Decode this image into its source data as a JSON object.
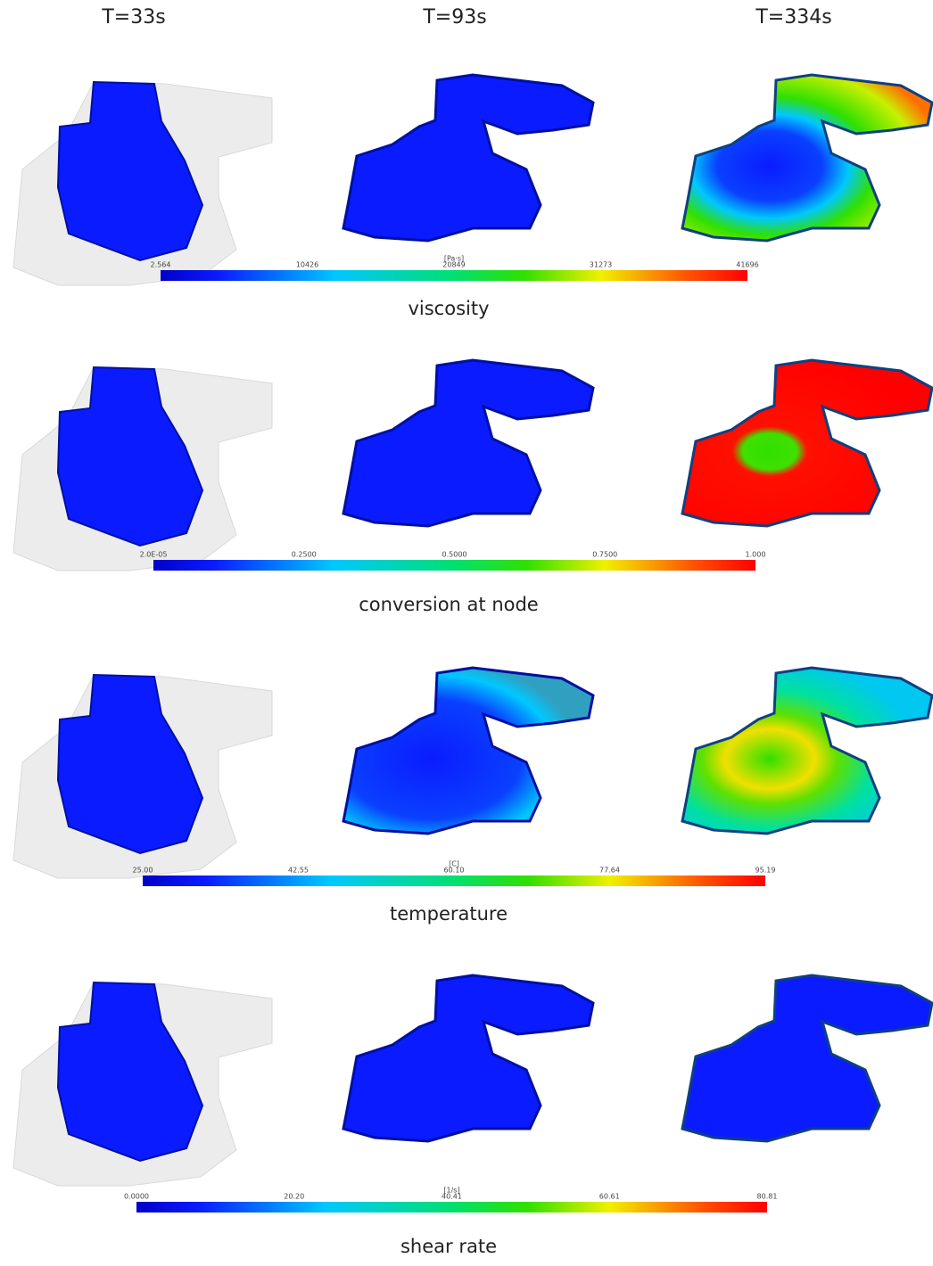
{
  "columns": [
    "T=33s",
    "T=93s",
    "T=334s"
  ],
  "rows": [
    {
      "label": "viscosity",
      "unit": "[Pa·s]",
      "ticks": [
        "2.564",
        "10426",
        "20849",
        "31273",
        "41696"
      ]
    },
    {
      "label": "conversion at node",
      "ticks": [
        "2.0E-05",
        "0.2500",
        "0.5000",
        "0.7500",
        "1.000"
      ]
    },
    {
      "label": "temperature",
      "unit": "[C]",
      "ticks": [
        "25.00",
        "42.55",
        "60.10",
        "77.64",
        "95.19"
      ]
    },
    {
      "label": "shear rate",
      "unit": "[1/s]",
      "ticks": [
        "0.0000",
        "20.20",
        "40.41",
        "60.61",
        "80.81"
      ]
    }
  ]
}
